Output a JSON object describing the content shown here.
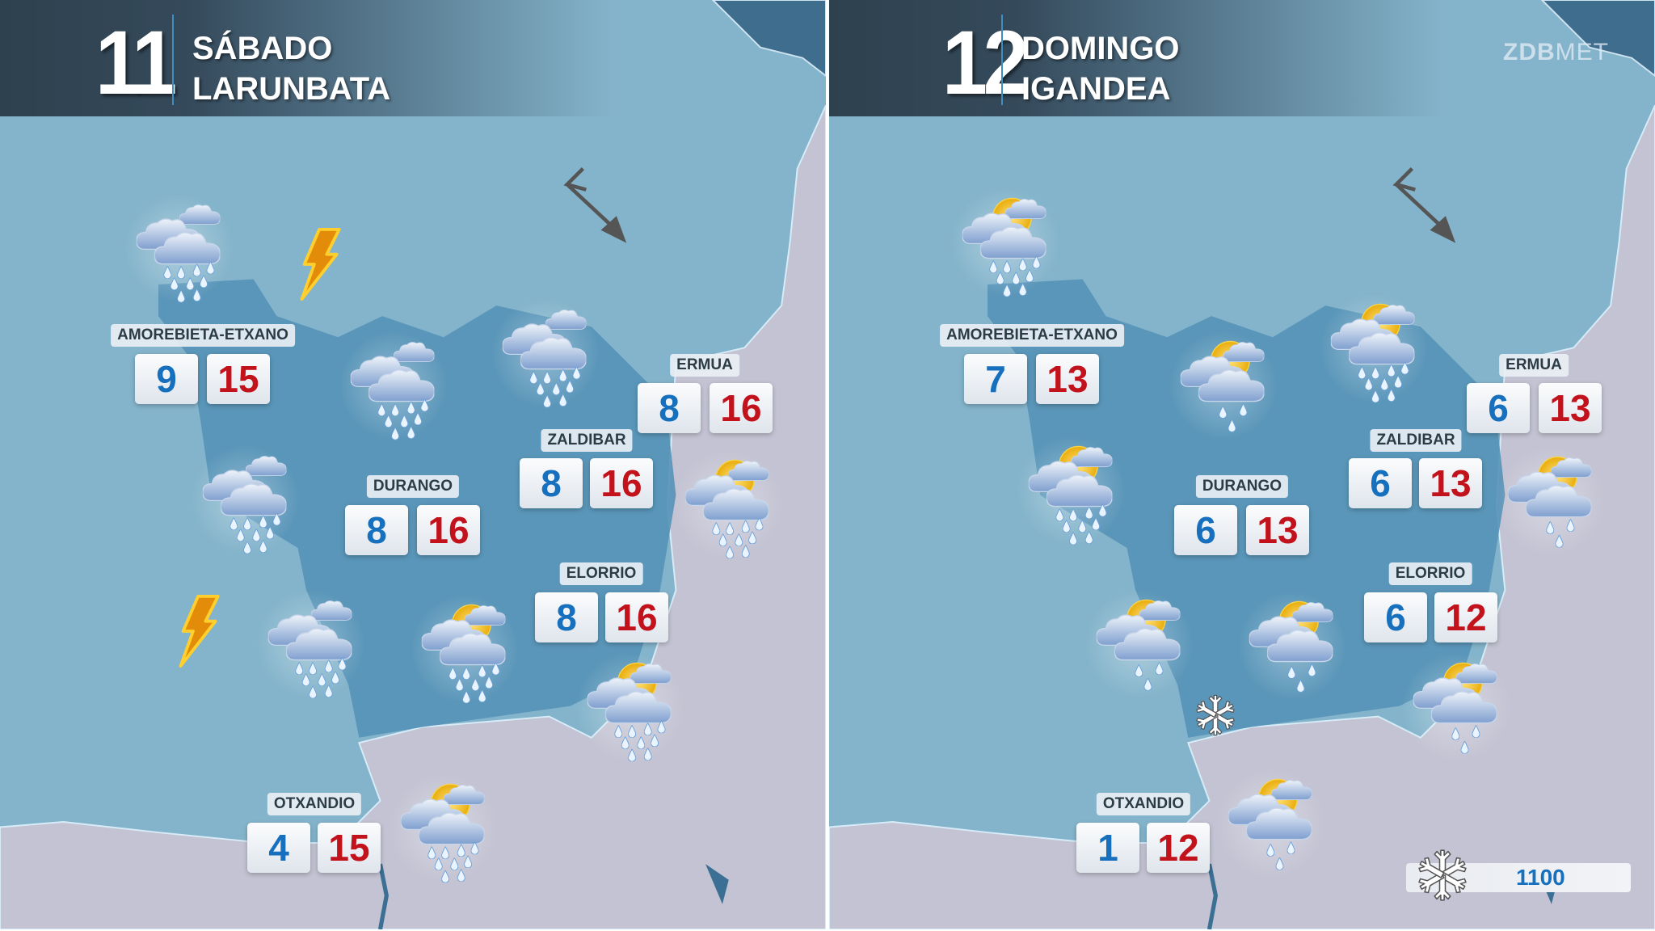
{
  "colors": {
    "sea": "#84b4cb",
    "region": "#5592b7",
    "land": "#c3c3d3",
    "min_temp": "#1670bd",
    "max_temp": "#c2121c"
  },
  "logo": {
    "bold": "ZDB",
    "light": "MET"
  },
  "days": [
    {
      "number": "11",
      "name_es": "SÁBADO",
      "name_eu": "LARUNBATA",
      "towns": [
        {
          "name": "AMOREBIETA-ETXANO",
          "min": "9",
          "max": "15"
        },
        {
          "name": "ERMUA",
          "min": "8",
          "max": "16"
        },
        {
          "name": "ZALDIBAR",
          "min": "8",
          "max": "16"
        },
        {
          "name": "DURANGO",
          "min": "8",
          "max": "16"
        },
        {
          "name": "ELORRIO",
          "min": "8",
          "max": "16"
        },
        {
          "name": "OTXANDIO",
          "min": "4",
          "max": "15"
        }
      ],
      "icons": [
        "heavy-rain",
        "lightning",
        "heavy-rain",
        "heavy-rain",
        "heavy-rain",
        "sun-heavy-rain",
        "lightning",
        "heavy-rain",
        "sun-heavy-rain",
        "sun-heavy-rain",
        "sun-heavy-rain"
      ],
      "wind": "wind-arrow-northwest"
    },
    {
      "number": "12",
      "name_es": "DOMINGO",
      "name_eu": "IGANDEA",
      "towns": [
        {
          "name": "AMOREBIETA-ETXANO",
          "min": "7",
          "max": "13"
        },
        {
          "name": "ERMUA",
          "min": "6",
          "max": "13"
        },
        {
          "name": "ZALDIBAR",
          "min": "6",
          "max": "13"
        },
        {
          "name": "DURANGO",
          "min": "6",
          "max": "13"
        },
        {
          "name": "ELORRIO",
          "min": "6",
          "max": "12"
        },
        {
          "name": "OTXANDIO",
          "min": "1",
          "max": "12"
        }
      ],
      "icons": [
        "sun-heavy-rain",
        "sun-light-rain",
        "sun-heavy-rain",
        "sun-heavy-rain",
        "sun-light-rain",
        "sun-light-rain",
        "sun-light-rain",
        "snow",
        "sun-light-rain",
        "sun-light-rain"
      ],
      "wind": "wind-arrow-northwest"
    }
  ],
  "snow_level": {
    "value": "1100",
    "icon": "snowflake-icon"
  }
}
